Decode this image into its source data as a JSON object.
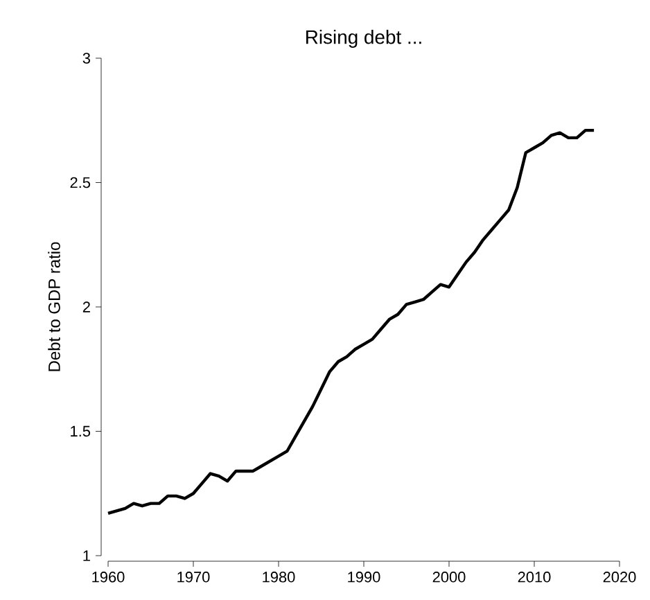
{
  "chart_data": {
    "type": "line",
    "title": "Rising debt ...",
    "ylabel": "Debt to GDP ratio",
    "x": [
      1960,
      1961,
      1962,
      1963,
      1964,
      1965,
      1966,
      1967,
      1968,
      1969,
      1970,
      1971,
      1972,
      1973,
      1974,
      1975,
      1976,
      1977,
      1978,
      1979,
      1980,
      1981,
      1982,
      1983,
      1984,
      1985,
      1986,
      1987,
      1988,
      1989,
      1990,
      1991,
      1992,
      1993,
      1994,
      1995,
      1996,
      1997,
      1998,
      1999,
      2000,
      2001,
      2002,
      2003,
      2004,
      2005,
      2006,
      2007,
      2008,
      2009,
      2010,
      2011,
      2012,
      2013,
      2014,
      2015,
      2016,
      2017
    ],
    "series": [
      {
        "color": "#000000",
        "values": [
          1.17,
          1.18,
          1.19,
          1.21,
          1.2,
          1.21,
          1.21,
          1.24,
          1.24,
          1.23,
          1.25,
          1.29,
          1.33,
          1.32,
          1.3,
          1.34,
          1.34,
          1.34,
          1.36,
          1.38,
          1.4,
          1.42,
          1.48,
          1.54,
          1.6,
          1.67,
          1.74,
          1.78,
          1.8,
          1.83,
          1.85,
          1.87,
          1.91,
          1.95,
          1.97,
          2.01,
          2.02,
          2.03,
          2.06,
          2.09,
          2.08,
          2.13,
          2.18,
          2.22,
          2.27,
          2.31,
          2.35,
          2.39,
          2.48,
          2.62,
          2.64,
          2.66,
          2.69,
          2.7,
          2.68,
          2.68,
          2.71,
          2.71
        ]
      }
    ],
    "xlim": [
      1960,
      2020
    ],
    "xticks": [
      1960,
      1970,
      1980,
      1990,
      2000,
      2010,
      2020
    ],
    "ylim": [
      1,
      3
    ],
    "yticks": [
      1,
      1.5,
      2,
      2.5,
      3
    ]
  }
}
